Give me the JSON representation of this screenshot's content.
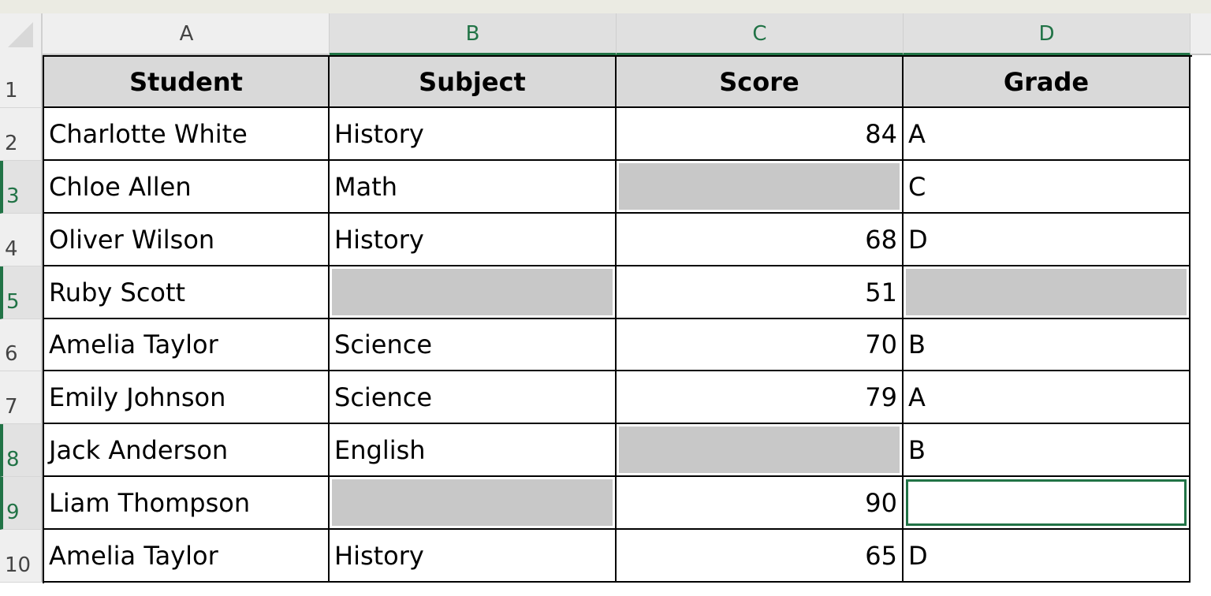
{
  "columns": [
    "A",
    "B",
    "C",
    "D"
  ],
  "selected_columns": [
    "B",
    "C",
    "D"
  ],
  "selected_rows": [
    3,
    5,
    8,
    9
  ],
  "headers": [
    "Student",
    "Subject",
    "Score",
    "Grade"
  ],
  "rows": [
    [
      "Charlotte White",
      "History",
      "84",
      "A"
    ],
    [
      "Chloe Allen",
      "Math",
      "",
      "C"
    ],
    [
      "Oliver Wilson",
      "History",
      "68",
      "D"
    ],
    [
      "Ruby Scott",
      "",
      "51",
      ""
    ],
    [
      "Amelia Taylor",
      "Science",
      "70",
      "B"
    ],
    [
      "Emily Johnson",
      "Science",
      "79",
      "A"
    ],
    [
      "Jack Anderson",
      "English",
      "",
      "B"
    ],
    [
      "Liam Thompson",
      "",
      "90",
      ""
    ],
    [
      "Amelia Taylor",
      "History",
      "65",
      "D"
    ]
  ],
  "active_cell": "D9",
  "colors": {
    "accent": "#217346",
    "blank_fill": "#c8c8c8",
    "header_fill": "#d9d9d9"
  }
}
